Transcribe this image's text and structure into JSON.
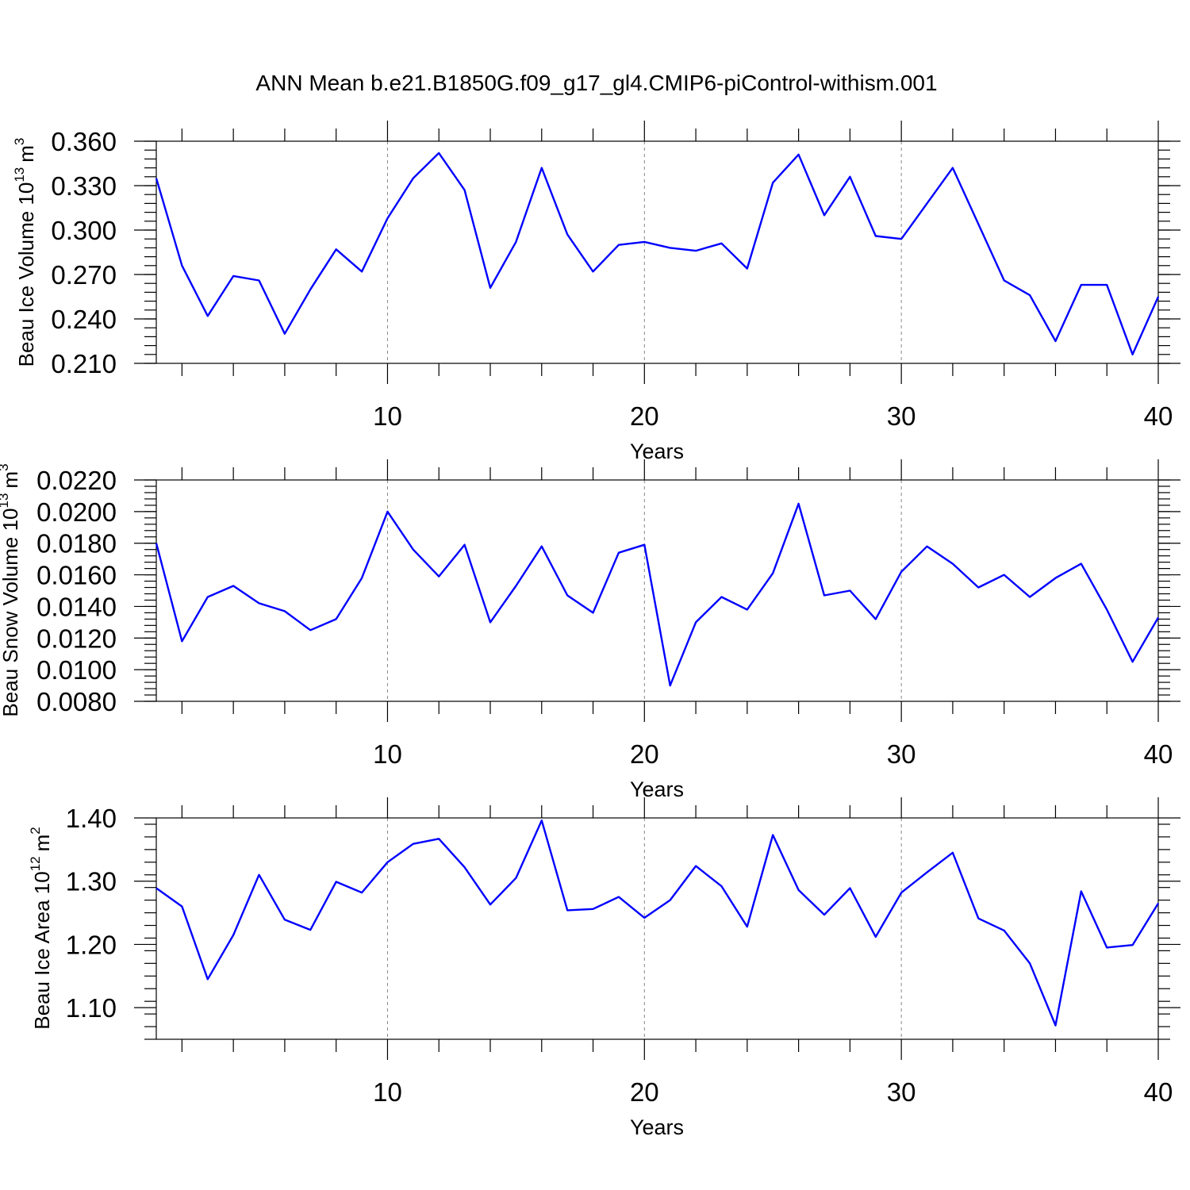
{
  "title": "ANN Mean b.e21.B1850G.f09_g17_gl4.CMIP6-piControl-withism.001",
  "colors": {
    "line": "#0000ff",
    "grid": "#888888",
    "axes": "#000000"
  },
  "chart_data": [
    {
      "type": "line",
      "ylabel": {
        "text": "Beau Ice Volume 10",
        "exponent": "13",
        "unit": "m",
        "unit_exponent": "3"
      },
      "xlabel": "Years",
      "xlim": [
        1,
        40
      ],
      "ylim": [
        0.21,
        0.36
      ],
      "x_ticks": [
        10,
        20,
        30,
        40
      ],
      "y_ticks": [
        "0.210",
        "0.240",
        "0.270",
        "0.300",
        "0.330",
        "0.360"
      ],
      "x_grid": "dashed at major ticks",
      "x": [
        1,
        2,
        3,
        4,
        5,
        6,
        7,
        8,
        9,
        10,
        11,
        12,
        13,
        14,
        15,
        16,
        17,
        18,
        19,
        20,
        21,
        22,
        23,
        24,
        25,
        26,
        27,
        28,
        29,
        30,
        31,
        32,
        33,
        34,
        35,
        36,
        37,
        38,
        39,
        40
      ],
      "values": [
        0.335,
        0.276,
        0.242,
        0.269,
        0.266,
        0.23,
        0.26,
        0.287,
        0.272,
        0.308,
        0.335,
        0.352,
        0.327,
        0.261,
        0.292,
        0.342,
        0.297,
        0.272,
        0.29,
        0.292,
        0.288,
        0.286,
        0.291,
        0.274,
        0.332,
        0.351,
        0.31,
        0.336,
        0.296,
        0.294,
        0.318,
        0.342,
        0.304,
        0.266,
        0.256,
        0.225,
        0.263,
        0.263,
        0.216,
        0.255
      ]
    },
    {
      "type": "line",
      "ylabel": {
        "text": "Beau Snow Volume 10",
        "exponent": "13",
        "unit": "m",
        "unit_exponent": "3"
      },
      "xlabel": "Years",
      "xlim": [
        1,
        40
      ],
      "ylim": [
        0.008,
        0.022
      ],
      "x_ticks": [
        10,
        20,
        30,
        40
      ],
      "y_ticks": [
        "0.0080",
        "0.0100",
        "0.0120",
        "0.0140",
        "0.0160",
        "0.0180",
        "0.0200",
        "0.0220"
      ],
      "x_grid": "dashed at major ticks",
      "x": [
        1,
        2,
        3,
        4,
        5,
        6,
        7,
        8,
        9,
        10,
        11,
        12,
        13,
        14,
        15,
        16,
        17,
        18,
        19,
        20,
        21,
        22,
        23,
        24,
        25,
        26,
        27,
        28,
        29,
        30,
        31,
        32,
        33,
        34,
        35,
        36,
        37,
        38,
        39,
        40
      ],
      "values": [
        0.018,
        0.0118,
        0.0146,
        0.0153,
        0.0142,
        0.0137,
        0.0125,
        0.0132,
        0.0158,
        0.02,
        0.0176,
        0.0159,
        0.0179,
        0.013,
        0.0153,
        0.0178,
        0.0147,
        0.0136,
        0.0174,
        0.0179,
        0.009,
        0.013,
        0.0146,
        0.0138,
        0.0161,
        0.0205,
        0.0147,
        0.015,
        0.0132,
        0.0162,
        0.0178,
        0.0167,
        0.0152,
        0.016,
        0.0146,
        0.0158,
        0.0167,
        0.0138,
        0.0105,
        0.0133
      ]
    },
    {
      "type": "line",
      "ylabel": {
        "text": "Beau Ice Area 10",
        "exponent": "12",
        "unit": "m",
        "unit_exponent": "2"
      },
      "xlabel": "Years",
      "xlim": [
        1,
        40
      ],
      "ylim": [
        1.05,
        1.4
      ],
      "x_ticks": [
        10,
        20,
        30,
        40
      ],
      "y_ticks": [
        "1.10",
        "1.20",
        "1.30",
        "1.40"
      ],
      "x_grid": "dashed at major ticks",
      "x": [
        1,
        2,
        3,
        4,
        5,
        6,
        7,
        8,
        9,
        10,
        11,
        12,
        13,
        14,
        15,
        16,
        17,
        18,
        19,
        20,
        21,
        22,
        23,
        24,
        25,
        26,
        27,
        28,
        29,
        30,
        31,
        32,
        33,
        34,
        35,
        36,
        37,
        38,
        39,
        40
      ],
      "values": [
        1.289,
        1.26,
        1.145,
        1.215,
        1.31,
        1.239,
        1.223,
        1.299,
        1.282,
        1.33,
        1.359,
        1.367,
        1.322,
        1.263,
        1.305,
        1.396,
        1.254,
        1.256,
        1.275,
        1.242,
        1.27,
        1.324,
        1.292,
        1.228,
        1.373,
        1.286,
        1.247,
        1.289,
        1.212,
        1.282,
        1.314,
        1.345,
        1.241,
        1.222,
        1.17,
        1.072,
        1.284,
        1.195,
        1.199,
        1.265
      ]
    }
  ]
}
